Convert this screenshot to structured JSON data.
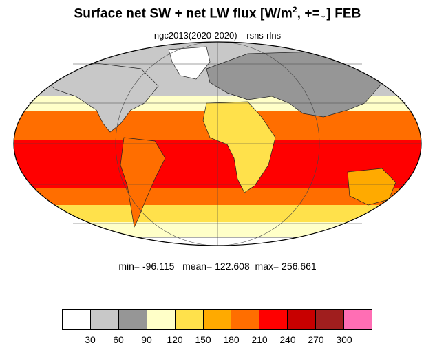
{
  "title": {
    "main": "Surface net SW + net LW flux [W/m",
    "sup": "2",
    "rest": ", +=↓]  FEB"
  },
  "subtitle": {
    "left": "ngc2013(2020-2020)",
    "right": "rsns-rlns"
  },
  "stats": {
    "text": "min= -96.115   mean= 122.608  max= 256.661"
  },
  "colorbar": {
    "colors": [
      "#ffffff",
      "#c8c8c8",
      "#969696",
      "#ffffc8",
      "#ffe14b",
      "#ffaa00",
      "#ff6e00",
      "#ff0000",
      "#c80000",
      "#a01e1e",
      "#ff6eb4"
    ],
    "labels": [
      "30",
      "60",
      "90",
      "120",
      "150",
      "180",
      "210",
      "240",
      "270",
      "300"
    ]
  },
  "map": {
    "projection": "mollweide",
    "field_colors": {
      "arctic": "#ffffff",
      "north_cold": "#c8c8c8",
      "north_deep": "#969696",
      "subtropic_pale": "#ffffc8",
      "yellow": "#ffe14b",
      "orange_light": "#ffaa00",
      "orange": "#ff6e00",
      "red": "#ff0000"
    }
  }
}
